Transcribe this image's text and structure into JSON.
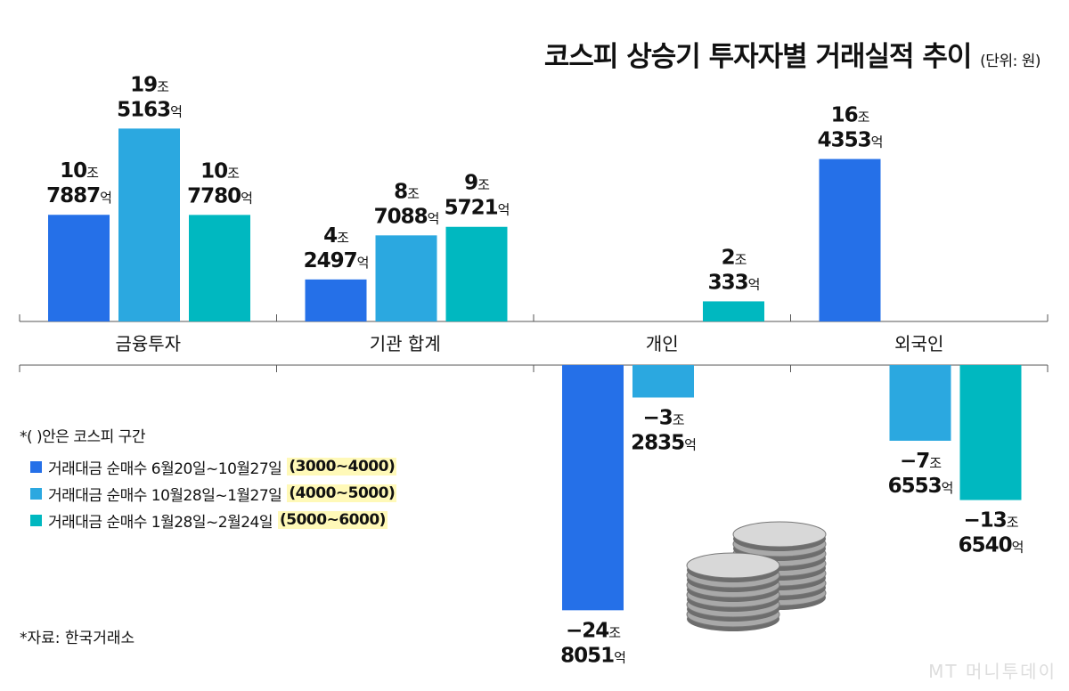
{
  "chart_data": {
    "type": "bar",
    "title": "코스피 상승기 투자자별 거래실적 추이",
    "unit": "(단위: 원)",
    "categories": [
      "금융투자",
      "기관 합계",
      "개인",
      "외국인"
    ],
    "value_unit": "억원",
    "series": [
      {
        "name": "거래대금 순매수 6월20일~10월27일",
        "range": "(3000~4000)",
        "color": "#2570e8",
        "values": [
          107887,
          42497,
          -248051,
          164353
        ]
      },
      {
        "name": "거래대금 순매수 10월28일~1월27일",
        "range": "(4000~5000)",
        "color": "#2ba8e0",
        "values": [
          195163,
          87088,
          -32835,
          -76553
        ]
      },
      {
        "name": "거래대금 순매수 1월28일~2월24일",
        "range": "(5000~6000)",
        "color": "#00b8c0",
        "values": [
          107780,
          95721,
          20333,
          -136540
        ]
      }
    ],
    "data_labels": [
      [
        [
          "10",
          "7887"
        ],
        [
          "4",
          "2497"
        ],
        [
          "−24",
          "8051"
        ],
        [
          "16",
          "4353"
        ]
      ],
      [
        [
          "19",
          "5163"
        ],
        [
          "8",
          "7088"
        ],
        [
          "−3",
          "2835"
        ],
        [
          "−7",
          "6553"
        ]
      ],
      [
        [
          "10",
          "7780"
        ],
        [
          "9",
          "5721"
        ],
        [
          "2",
          "333"
        ],
        [
          "−13",
          "6540"
        ]
      ]
    ],
    "jo": "조",
    "eok": "억",
    "legend_note": "*(   )안은 코스피 구간",
    "legend_placement": "bottom-left",
    "grid": false
  },
  "source": "*자료: 한국거래소",
  "watermark": "MT 머니투데이"
}
